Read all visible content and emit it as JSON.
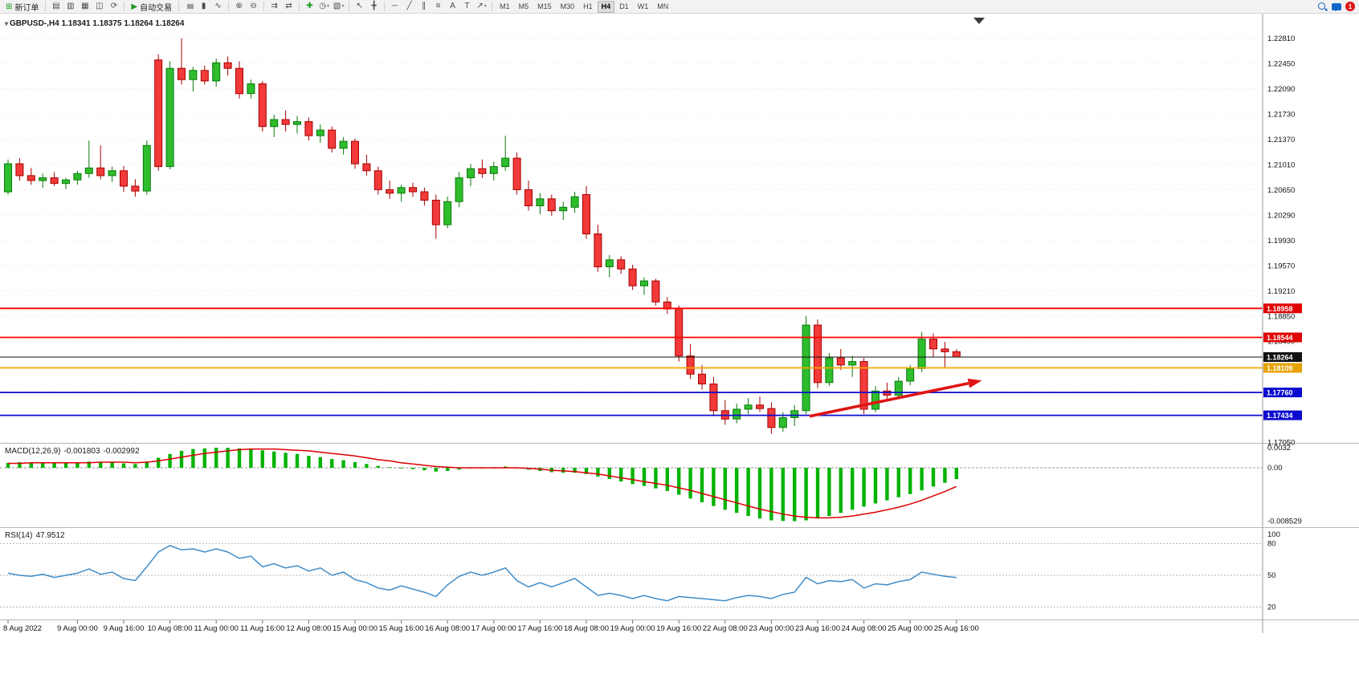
{
  "toolbar": {
    "new_order": "新订单",
    "autotrading": "自动交易",
    "timeframes": [
      "M1",
      "M5",
      "M15",
      "M30",
      "H1",
      "H4",
      "D1",
      "W1",
      "MN"
    ],
    "active_timeframe": "H4",
    "notification_count": "1",
    "icons_window": [
      {
        "name": "market-watch",
        "glyph": "▤"
      },
      {
        "name": "data-window",
        "glyph": "▥"
      },
      {
        "name": "navigator",
        "glyph": "▦"
      },
      {
        "name": "terminal",
        "glyph": "◫"
      },
      {
        "name": "strategy-tester",
        "glyph": "⟳"
      }
    ],
    "icons_chart": [
      {
        "name": "bar-chart",
        "glyph": "≣",
        "rot": true
      },
      {
        "name": "candlestick-chart",
        "glyph": "▮"
      },
      {
        "name": "line-chart",
        "glyph": "∿"
      },
      {
        "sep": true
      },
      {
        "name": "zoom-in",
        "glyph": "⊕"
      },
      {
        "name": "zoom-out",
        "glyph": "⊖"
      },
      {
        "sep": true
      },
      {
        "name": "auto-scroll",
        "glyph": "⇉"
      },
      {
        "name": "chart-shift",
        "glyph": "⇄"
      },
      {
        "sep": true
      },
      {
        "name": "indicators",
        "glyph": "✚",
        "color": "#1a9a1a"
      },
      {
        "name": "periods",
        "glyph": "◷",
        "dd": true
      },
      {
        "name": "templates",
        "glyph": "▧",
        "dd": true
      },
      {
        "sep": true
      },
      {
        "name": "cursor",
        "glyph": "↖"
      },
      {
        "name": "crosshair",
        "glyph": "╋"
      },
      {
        "sep": true
      },
      {
        "name": "horizontal-line",
        "glyph": "─"
      },
      {
        "name": "trendline",
        "glyph": "╱"
      },
      {
        "name": "equidistant-channel",
        "glyph": "∥"
      },
      {
        "name": "fibonacci",
        "glyph": "≡"
      },
      {
        "name": "text",
        "glyph": "A"
      },
      {
        "name": "text-label",
        "glyph": "T"
      },
      {
        "name": "arrows",
        "glyph": "↗",
        "dd": true
      }
    ]
  },
  "header": {
    "title": "GBPUSD-,H4 1.18341 1.18375 1.18264 1.18264",
    "symbol": "GBPUSD-",
    "period": "H4",
    "open": "1.18341",
    "high": "1.18375",
    "low": "1.18264",
    "close": "1.18264"
  },
  "price_axis": {
    "labels": [
      "1.22810",
      "1.22450",
      "1.22090",
      "1.21730",
      "1.21370",
      "1.21010",
      "1.20650",
      "1.20290",
      "1.19930",
      "1.19570",
      "1.19210",
      "1.18850",
      "1.18490",
      "1.18130",
      "1.17770",
      "1.17410",
      "1.17050"
    ],
    "tags": [
      {
        "value": "1.18958",
        "price": 1.18958,
        "color": "#e00000"
      },
      {
        "value": "1.18544",
        "price": 1.18544,
        "color": "#e00000"
      },
      {
        "value": "1.18264",
        "price": 1.18264,
        "color": "#111111"
      },
      {
        "value": "1.18109",
        "price": 1.18109,
        "color": "#e8a200"
      },
      {
        "value": "1.17760",
        "price": 1.1776,
        "color": "#0b0bd0"
      },
      {
        "value": "1.17434",
        "price": 1.17434,
        "color": "#0b0bd0"
      }
    ]
  },
  "hlines": [
    {
      "name": "resistance-1",
      "price": 1.18958,
      "color": "#ff0000",
      "width": 1.8
    },
    {
      "name": "resistance-2",
      "price": 1.18544,
      "color": "#ff0000",
      "width": 1.8
    },
    {
      "name": "bid-line",
      "price": 1.18264,
      "color": "#111111",
      "width": 1
    },
    {
      "name": "pivot-orange",
      "price": 1.18109,
      "color": "#f0a800",
      "width": 1.8
    },
    {
      "name": "support-1",
      "price": 1.1776,
      "color": "#0b0bd0",
      "width": 1.8
    },
    {
      "name": "support-2",
      "price": 1.17434,
      "color": "#0b0bd0",
      "width": 1.8
    }
  ],
  "annotations": {
    "arrow": {
      "from": {
        "index": 69.3,
        "price": 1.1742
      },
      "to": {
        "index": 84.2,
        "price": 1.1793
      },
      "color": "#e01515"
    }
  },
  "time_axis": {
    "labels": [
      {
        "index": 0,
        "text": "8 Aug 2022"
      },
      {
        "index": 6,
        "text": "9 Aug 00:00"
      },
      {
        "index": 10,
        "text": "9 Aug 16:00"
      },
      {
        "index": 14,
        "text": "10 Aug 08:00"
      },
      {
        "index": 18,
        "text": "11 Aug 00:00"
      },
      {
        "index": 22,
        "text": "11 Aug 16:00"
      },
      {
        "index": 26,
        "text": "12 Aug 08:00"
      },
      {
        "index": 30,
        "text": "15 Aug 00:00"
      },
      {
        "index": 34,
        "text": "15 Aug 16:00"
      },
      {
        "index": 38,
        "text": "16 Aug 08:00"
      },
      {
        "index": 42,
        "text": "17 Aug 00:00"
      },
      {
        "index": 46,
        "text": "17 Aug 16:00"
      },
      {
        "index": 50,
        "text": "18 Aug 08:00"
      },
      {
        "index": 54,
        "text": "19 Aug 00:00"
      },
      {
        "index": 58,
        "text": "19 Aug 16:00"
      },
      {
        "index": 62,
        "text": "22 Aug 08:00"
      },
      {
        "index": 66,
        "text": "23 Aug 00:00"
      },
      {
        "index": 70,
        "text": "23 Aug 16:00"
      },
      {
        "index": 74,
        "text": "24 Aug 08:00"
      },
      {
        "index": 78,
        "text": "25 Aug 00:00"
      },
      {
        "index": 82,
        "text": "25 Aug 16:00"
      }
    ]
  },
  "chart_data": {
    "type": "candlestick",
    "symbol": "GBPUSD",
    "timeframe": "H4",
    "title": "GBPUSD-,H4",
    "price_range": {
      "top": 1.2316,
      "bottom": 1.1704
    },
    "colors": {
      "up": "#2dbd2d",
      "up_border": "#0b7a0b",
      "down": "#f23a3a",
      "down_border": "#a80000"
    },
    "candles": [
      [
        1.2062,
        1.2108,
        1.2058,
        1.2102
      ],
      [
        1.2102,
        1.211,
        1.2078,
        1.2085
      ],
      [
        1.2085,
        1.2096,
        1.2072,
        1.2078
      ],
      [
        1.2078,
        1.2088,
        1.2068,
        1.2082
      ],
      [
        1.2082,
        1.209,
        1.207,
        1.2074
      ],
      [
        1.2074,
        1.2082,
        1.2066,
        1.2079
      ],
      [
        1.2079,
        1.2092,
        1.2072,
        1.2088
      ],
      [
        1.2088,
        1.2135,
        1.2082,
        1.2096
      ],
      [
        1.2096,
        1.2128,
        1.208,
        1.2085
      ],
      [
        1.2085,
        1.2098,
        1.2076,
        1.2092
      ],
      [
        1.2092,
        1.2099,
        1.2062,
        1.207
      ],
      [
        1.207,
        1.208,
        1.2055,
        1.2063
      ],
      [
        1.2063,
        1.2135,
        1.2058,
        1.2128
      ],
      [
        1.225,
        1.2258,
        1.2092,
        1.2098
      ],
      [
        1.2098,
        1.2248,
        1.2094,
        1.2238
      ],
      [
        1.2238,
        1.2281,
        1.2215,
        1.2222
      ],
      [
        1.2222,
        1.224,
        1.2205,
        1.2235
      ],
      [
        1.2235,
        1.2242,
        1.2215,
        1.222
      ],
      [
        1.222,
        1.2252,
        1.2212,
        1.2246
      ],
      [
        1.2246,
        1.2255,
        1.2228,
        1.2238
      ],
      [
        1.2238,
        1.2248,
        1.2195,
        1.2202
      ],
      [
        1.2202,
        1.2222,
        1.2195,
        1.2216
      ],
      [
        1.2216,
        1.222,
        1.2148,
        1.2155
      ],
      [
        1.2155,
        1.2172,
        1.214,
        1.2165
      ],
      [
        1.2165,
        1.2178,
        1.2148,
        1.2158
      ],
      [
        1.2158,
        1.217,
        1.2145,
        1.2162
      ],
      [
        1.2162,
        1.2168,
        1.2135,
        1.2142
      ],
      [
        1.2142,
        1.2158,
        1.2132,
        1.215
      ],
      [
        1.215,
        1.2155,
        1.2118,
        1.2124
      ],
      [
        1.2124,
        1.214,
        1.2115,
        1.2134
      ],
      [
        1.2134,
        1.2138,
        1.2095,
        1.2102
      ],
      [
        1.2102,
        1.2115,
        1.2085,
        1.2092
      ],
      [
        1.2092,
        1.2098,
        1.2058,
        1.2065
      ],
      [
        1.2065,
        1.2078,
        1.2052,
        1.206
      ],
      [
        1.206,
        1.2072,
        1.2048,
        1.2068
      ],
      [
        1.2068,
        1.2075,
        1.2055,
        1.2062
      ],
      [
        1.2062,
        1.2068,
        1.2042,
        1.205
      ],
      [
        1.205,
        1.2058,
        1.1995,
        1.2015
      ],
      [
        1.2015,
        1.2055,
        1.201,
        1.2048
      ],
      [
        1.2048,
        1.209,
        1.204,
        1.2082
      ],
      [
        1.2082,
        1.2102,
        1.207,
        1.2095
      ],
      [
        1.2095,
        1.2108,
        1.2082,
        1.2088
      ],
      [
        1.2088,
        1.2105,
        1.2078,
        1.2098
      ],
      [
        1.2098,
        1.2142,
        1.2092,
        1.211
      ],
      [
        1.211,
        1.2118,
        1.2058,
        1.2065
      ],
      [
        1.2065,
        1.2078,
        1.2035,
        1.2042
      ],
      [
        1.2042,
        1.206,
        1.203,
        1.2052
      ],
      [
        1.2052,
        1.2058,
        1.2028,
        1.2035
      ],
      [
        1.2035,
        1.2048,
        1.2022,
        1.204
      ],
      [
        1.204,
        1.2062,
        1.2032,
        1.2055
      ],
      [
        1.2058,
        1.207,
        1.1995,
        1.2002
      ],
      [
        1.2002,
        1.2015,
        1.1948,
        1.1955
      ],
      [
        1.1955,
        1.1972,
        1.194,
        1.1965
      ],
      [
        1.1965,
        1.197,
        1.1945,
        1.1952
      ],
      [
        1.1952,
        1.1958,
        1.1922,
        1.1928
      ],
      [
        1.1928,
        1.194,
        1.1915,
        1.1935
      ],
      [
        1.1935,
        1.1938,
        1.19,
        1.1905
      ],
      [
        1.1905,
        1.1912,
        1.1888,
        1.1895
      ],
      [
        1.1895,
        1.19,
        1.182,
        1.1828
      ],
      [
        1.1828,
        1.1845,
        1.1795,
        1.1802
      ],
      [
        1.1802,
        1.1815,
        1.178,
        1.1788
      ],
      [
        1.1788,
        1.1798,
        1.1742,
        1.175
      ],
      [
        1.175,
        1.1765,
        1.173,
        1.1738
      ],
      [
        1.1738,
        1.176,
        1.1732,
        1.1752
      ],
      [
        1.1752,
        1.1768,
        1.1745,
        1.1758
      ],
      [
        1.1758,
        1.177,
        1.1748,
        1.1753
      ],
      [
        1.1753,
        1.1762,
        1.1717,
        1.1726
      ],
      [
        1.1726,
        1.1748,
        1.172,
        1.174
      ],
      [
        1.174,
        1.1758,
        1.1728,
        1.175
      ],
      [
        1.175,
        1.1885,
        1.1745,
        1.1872
      ],
      [
        1.1872,
        1.188,
        1.1782,
        1.179
      ],
      [
        1.179,
        1.1832,
        1.1785,
        1.1825
      ],
      [
        1.1825,
        1.1838,
        1.1808,
        1.1815
      ],
      [
        1.1815,
        1.1828,
        1.1798,
        1.182
      ],
      [
        1.182,
        1.1825,
        1.1745,
        1.1752
      ],
      [
        1.1752,
        1.1785,
        1.1748,
        1.1778
      ],
      [
        1.1778,
        1.179,
        1.1765,
        1.1772
      ],
      [
        1.1772,
        1.1798,
        1.1768,
        1.1792
      ],
      [
        1.1792,
        1.1815,
        1.1786,
        1.181
      ],
      [
        1.181,
        1.1862,
        1.1805,
        1.1852
      ],
      [
        1.1852,
        1.186,
        1.1826,
        1.1838
      ],
      [
        1.1838,
        1.1848,
        1.1812,
        1.1834
      ],
      [
        1.18341,
        1.18375,
        1.18264,
        1.18264
      ]
    ],
    "indicators": {
      "macd": {
        "label": "MACD(12,26,9)",
        "value_main": "-0.001803",
        "value_signal": "-0.002992",
        "axis": [
          "0.0032",
          "0.00",
          "-0.008529"
        ],
        "color_histogram": "#00b300",
        "color_signal": "#dd0000",
        "histogram": [
          0.0008,
          0.0009,
          0.0008,
          0.0008,
          0.0007,
          0.0007,
          0.0008,
          0.001,
          0.0009,
          0.0009,
          0.0007,
          0.0006,
          0.001,
          0.0016,
          0.0022,
          0.0027,
          0.003,
          0.0031,
          0.0032,
          0.0032,
          0.0031,
          0.003,
          0.0028,
          0.0026,
          0.0024,
          0.0022,
          0.0019,
          0.0017,
          0.0014,
          0.0012,
          0.0009,
          0.0006,
          0.0003,
          0.0001,
          -0.0001,
          -0.0002,
          -0.0004,
          -0.0006,
          -0.0005,
          -0.0003,
          -0.0001,
          0.0,
          0.0001,
          0.0002,
          0.0,
          -0.0003,
          -0.0005,
          -0.0007,
          -0.0008,
          -0.0008,
          -0.001,
          -0.0014,
          -0.0018,
          -0.0022,
          -0.0026,
          -0.0029,
          -0.0033,
          -0.0037,
          -0.0043,
          -0.0049,
          -0.0055,
          -0.0061,
          -0.0067,
          -0.0072,
          -0.0077,
          -0.0081,
          -0.0084,
          -0.0085,
          -0.00853,
          -0.0084,
          -0.0081,
          -0.0077,
          -0.0072,
          -0.0067,
          -0.0062,
          -0.0057,
          -0.0052,
          -0.0047,
          -0.0042,
          -0.0036,
          -0.003,
          -0.0024,
          -0.001803
        ],
        "signal": [
          0.0007,
          0.0007,
          0.0008,
          0.0008,
          0.0008,
          0.0008,
          0.0008,
          0.0008,
          0.0009,
          0.0009,
          0.0009,
          0.0008,
          0.0009,
          0.0011,
          0.0014,
          0.0017,
          0.002,
          0.0023,
          0.0025,
          0.0027,
          0.0029,
          0.003,
          0.003,
          0.003,
          0.0029,
          0.0028,
          0.0027,
          0.0025,
          0.0023,
          0.0021,
          0.0019,
          0.0016,
          0.0013,
          0.0011,
          0.0008,
          0.0006,
          0.0004,
          0.0002,
          0.0001,
          0.0,
          0.0,
          0.0,
          0.0,
          0.0,
          0.0,
          -0.0001,
          -0.0002,
          -0.0004,
          -0.0005,
          -0.0006,
          -0.0008,
          -0.001,
          -0.0013,
          -0.0016,
          -0.0019,
          -0.0022,
          -0.0025,
          -0.0028,
          -0.0032,
          -0.0036,
          -0.0041,
          -0.0046,
          -0.0051,
          -0.0056,
          -0.0061,
          -0.0066,
          -0.007,
          -0.0074,
          -0.0077,
          -0.0079,
          -0.008,
          -0.008,
          -0.0079,
          -0.0077,
          -0.0074,
          -0.0071,
          -0.0067,
          -0.0063,
          -0.0058,
          -0.0052,
          -0.0045,
          -0.0038,
          -0.002992
        ]
      },
      "rsi": {
        "label": "RSI(14)",
        "value": "47.9512",
        "axis": [
          "100",
          "80",
          "50",
          "20"
        ],
        "levels": [
          80,
          50,
          20
        ],
        "color": "#3f8cc8",
        "series": [
          52,
          50,
          49,
          51,
          48,
          50,
          52,
          56,
          51,
          53,
          47,
          45,
          58,
          72,
          78,
          74,
          75,
          72,
          75,
          72,
          66,
          68,
          58,
          61,
          57,
          59,
          54,
          57,
          50,
          53,
          46,
          43,
          38,
          36,
          40,
          37,
          34,
          30,
          41,
          49,
          53,
          50,
          53,
          57,
          45,
          39,
          43,
          39,
          43,
          47,
          39,
          31,
          33,
          31,
          28,
          31,
          28,
          26,
          30,
          29,
          28,
          27,
          26,
          29,
          31,
          30,
          28,
          32,
          34,
          48,
          42,
          45,
          44,
          46,
          38,
          42,
          41,
          44,
          46,
          53,
          51,
          49,
          47.9512
        ]
      }
    }
  }
}
